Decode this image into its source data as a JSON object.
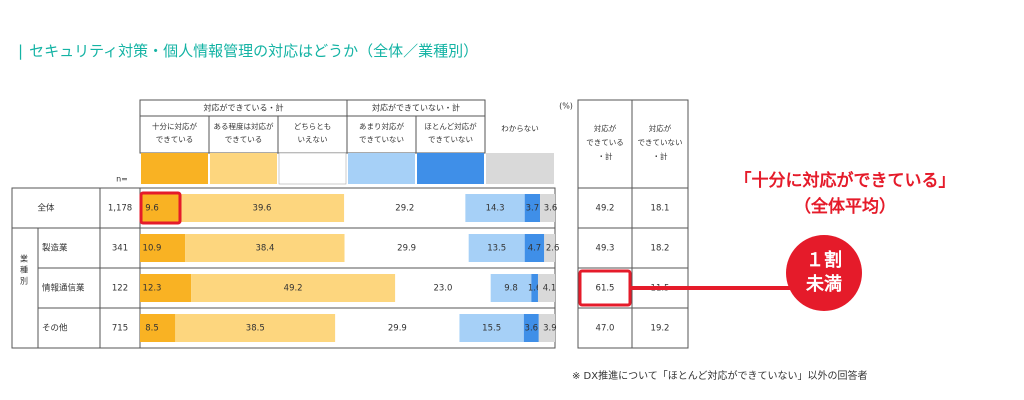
{
  "title": "セキュリティ対策・個人情報管理の対応はどうか（全体／業種別）",
  "title_bar": "|",
  "chart_data": {
    "type": "bar",
    "stacked": "horizontal-100%",
    "unit_label": "(%)",
    "n_label": "n=",
    "group_headers": {
      "can": "対応ができている・計",
      "cannot": "対応ができていない・計"
    },
    "column_headers": [
      "十分に対応ができている",
      "ある程度は対応ができている",
      "どちらともいえない",
      "あまり対応ができていない",
      "ほとんど対応ができていない",
      "わからない"
    ],
    "series_colors": [
      "#f9b223",
      "#fdd67e",
      "#ffffff",
      "#a6d0f7",
      "#3f8fe8",
      "#d9d9d9"
    ],
    "summary_headers": [
      "対応ができている・計",
      "対応ができていない・計"
    ],
    "group_label": "業種別",
    "rows": [
      {
        "label": "全体",
        "n": "1,178",
        "values": [
          9.6,
          39.6,
          29.2,
          14.3,
          3.7,
          3.6
        ],
        "labels": [
          "9.6",
          "39.6",
          "29.2",
          "14.3",
          "3.7",
          "3.6"
        ],
        "can_total": "49.2",
        "cannot_total": "18.1"
      },
      {
        "label": "製造業",
        "n": "341",
        "values": [
          10.9,
          38.4,
          29.9,
          13.5,
          4.7,
          2.6
        ],
        "labels": [
          "10.9",
          "38.4",
          "29.9",
          "13.5",
          "4.7",
          "2.6"
        ],
        "can_total": "49.3",
        "cannot_total": "18.2"
      },
      {
        "label": "情報通信業",
        "n": "122",
        "values": [
          12.3,
          49.2,
          23.0,
          9.8,
          1.6,
          4.1
        ],
        "labels": [
          "12.3",
          "49.2",
          "23.0",
          "9.8",
          "1.6",
          "4.1"
        ],
        "can_total": "61.5",
        "cannot_total": "11.5"
      },
      {
        "label": "その他",
        "n": "715",
        "values": [
          8.5,
          38.5,
          29.9,
          15.5,
          3.6,
          3.9
        ],
        "labels": [
          "8.5",
          "38.5",
          "29.9",
          "15.5",
          "3.6",
          "3.9"
        ],
        "can_total": "47.0",
        "cannot_total": "19.2"
      }
    ]
  },
  "callout": {
    "main": "「十分に対応ができている」",
    "sub": "（全体平均）"
  },
  "circle": {
    "line1": "１割",
    "line2": "未満"
  },
  "highlight_color": "#e51b2a",
  "footnote": "※ DX推進について「ほとんど対応ができていない」以外の回答者"
}
